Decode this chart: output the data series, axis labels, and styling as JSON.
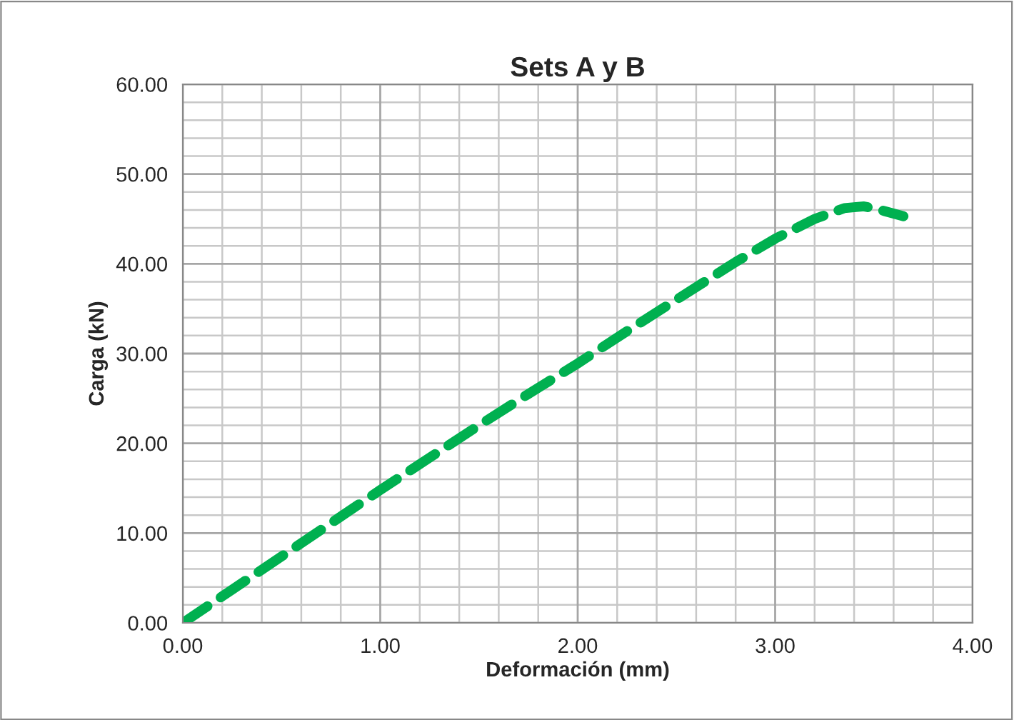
{
  "chart_data": {
    "type": "line",
    "title": "Sets A y B",
    "xlabel": "Deformación (mm)",
    "ylabel": "Carga (kN)",
    "series": [
      {
        "color": "#00b050",
        "x": [
          0,
          0.25,
          0.5,
          0.75,
          1.0,
          1.25,
          1.5,
          1.75,
          2.0,
          2.25,
          2.5,
          2.8,
          3.0,
          3.2,
          3.35,
          3.45,
          3.55,
          3.65
        ],
        "values": [
          0,
          3.7,
          7.4,
          11.1,
          14.8,
          18.4,
          22.0,
          25.5,
          28.9,
          32.5,
          36.0,
          40.2,
          42.8,
          45.0,
          46.2,
          46.4,
          45.9,
          45.3
        ]
      }
    ],
    "xlim": [
      0,
      4
    ],
    "ylim": [
      0,
      60
    ],
    "xticks": [
      {
        "value": 0,
        "label": "0.00"
      },
      {
        "value": 1,
        "label": "1.00"
      },
      {
        "value": 2,
        "label": "2.00"
      },
      {
        "value": 3,
        "label": "3.00"
      },
      {
        "value": 4,
        "label": "4.00"
      }
    ],
    "yticks": [
      {
        "value": 0,
        "label": "0.00"
      },
      {
        "value": 10,
        "label": "10.00"
      },
      {
        "value": 20,
        "label": "20.00"
      },
      {
        "value": 30,
        "label": "30.00"
      },
      {
        "value": 40,
        "label": "40.00"
      },
      {
        "value": 50,
        "label": "50.00"
      },
      {
        "value": 60,
        "label": "60.00"
      }
    ],
    "grid": true,
    "line_style": "dashed",
    "marker": "none",
    "legend": false
  }
}
